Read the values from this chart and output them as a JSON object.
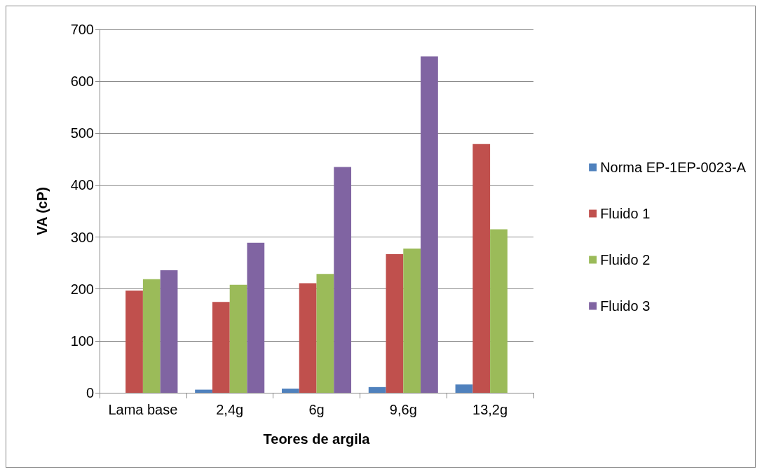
{
  "chart_data": {
    "type": "bar",
    "xlabel": "Teores de argila",
    "ylabel": "VA (cP)",
    "categories": [
      "Lama base",
      "2,4g",
      "6g",
      "9,6g",
      "13,2g"
    ],
    "series": [
      {
        "name": "Norma EP-1EP-0023-A",
        "color": "#4f81bd",
        "values": [
          null,
          6,
          8,
          11,
          16
        ]
      },
      {
        "name": "Fluido 1",
        "color": "#c0504d",
        "values": [
          197,
          175,
          211,
          267,
          479
        ]
      },
      {
        "name": "Fluido 2",
        "color": "#9bbb59",
        "values": [
          219,
          208,
          229,
          278,
          315
        ]
      },
      {
        "name": "Fluido 3",
        "color": "#8064a2",
        "values": [
          236,
          289,
          435,
          648,
          null
        ]
      }
    ],
    "ylim": [
      0,
      700
    ],
    "yticks": [
      0,
      100,
      200,
      300,
      400,
      500,
      600,
      700
    ],
    "grid": "y",
    "legend": "right"
  }
}
